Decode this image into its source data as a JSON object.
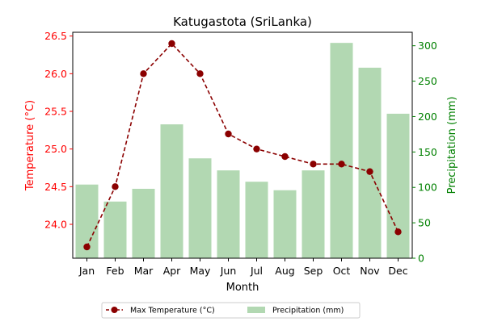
{
  "chart_data": {
    "type": "bar+line",
    "title": "Katugastota (SriLanka)",
    "xlabel": "Month",
    "categories": [
      "Jan",
      "Feb",
      "Mar",
      "Apr",
      "May",
      "Jun",
      "Jul",
      "Aug",
      "Sep",
      "Oct",
      "Nov",
      "Dec"
    ],
    "left_axis": {
      "label": "Temperature (°C)",
      "color": "#ff0000",
      "ylim": [
        23.55,
        26.55
      ],
      "ticks": [
        "24.0",
        "24.5",
        "25.0",
        "25.5",
        "26.0",
        "26.5"
      ]
    },
    "right_axis": {
      "label": "Precipitation (mm)",
      "color": "#008000",
      "ylim": [
        0,
        319
      ],
      "ticks": [
        "0",
        "50",
        "100",
        "150",
        "200",
        "250",
        "300"
      ]
    },
    "series": [
      {
        "name": "Max Temperature (°C)",
        "kind": "line",
        "axis": "left",
        "color": "#8b0000",
        "style": "dashed",
        "marker": "circle",
        "values": [
          23.7,
          24.5,
          26.0,
          26.4,
          26.0,
          25.2,
          25.0,
          24.9,
          24.8,
          24.8,
          24.7,
          23.9
        ]
      },
      {
        "name": "Precipitation (mm)",
        "kind": "bar",
        "axis": "right",
        "color": "#b2d8b2",
        "values": [
          104,
          80,
          98,
          189,
          141,
          124,
          108,
          96,
          124,
          304,
          269,
          204
        ]
      }
    ],
    "legend_position": "bottom-center",
    "grid": false
  }
}
